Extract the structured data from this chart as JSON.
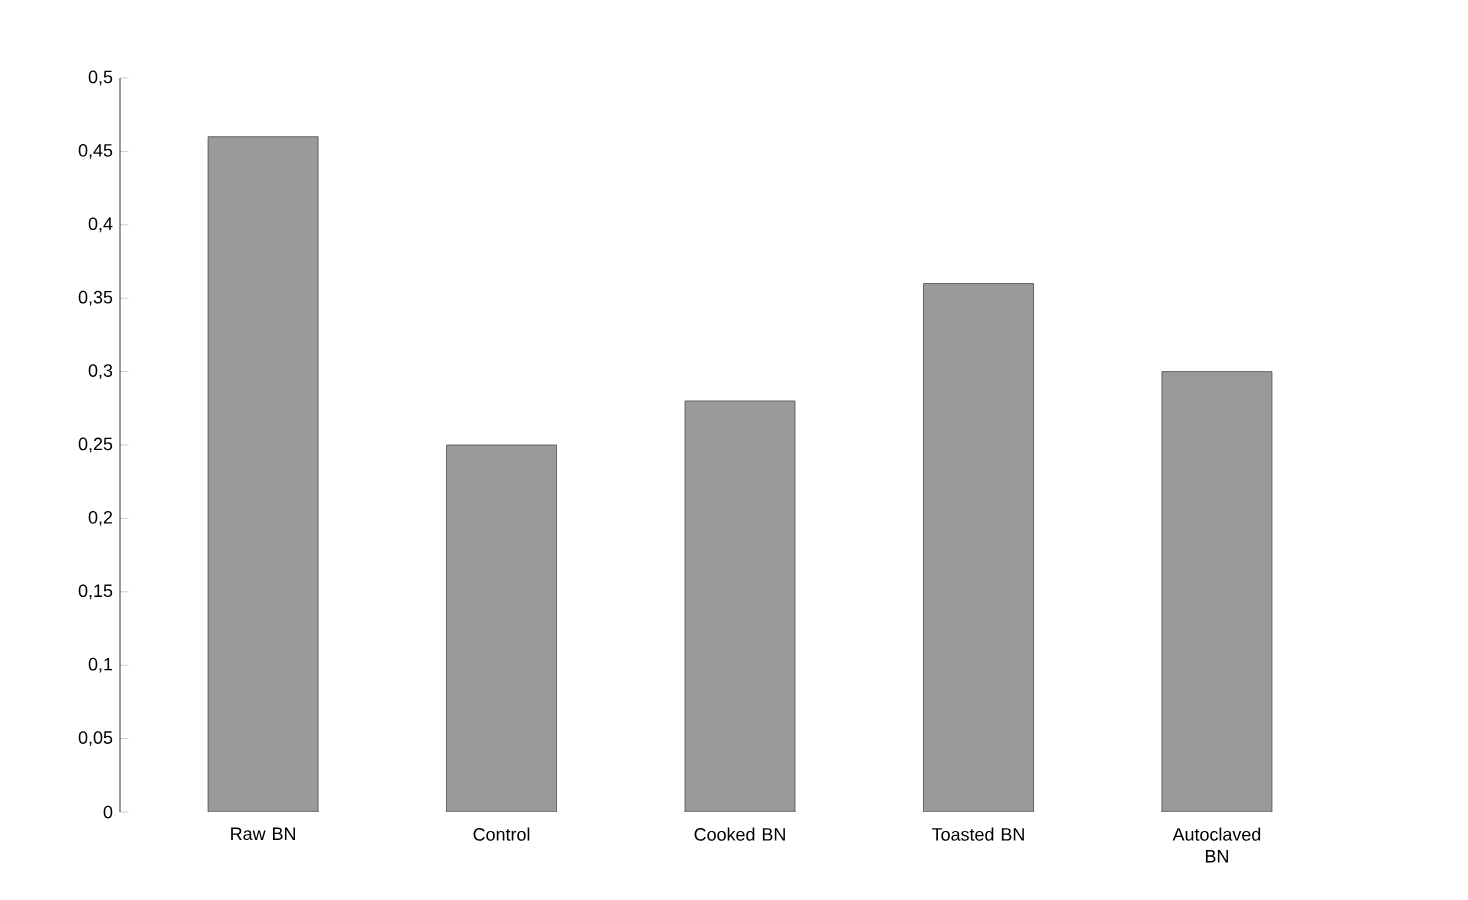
{
  "chart_data": {
    "type": "bar",
    "categories": [
      "Raw BN",
      "Control",
      "Cooked BN",
      "Toasted BN",
      "Autoclaved BN"
    ],
    "values": [
      0.46,
      0.25,
      0.28,
      0.36,
      0.3
    ],
    "color": "#9a9a9a",
    "ylim": [
      0,
      0.5
    ],
    "yticks": [
      0,
      {
        "value": 0.05,
        "label": "0,05"
      },
      {
        "value": 0.1,
        "label": "0,1"
      },
      {
        "value": 0.15,
        "label": "0,15"
      },
      {
        "value": 0.2,
        "label": "0,2"
      },
      {
        "value": 0.25,
        "label": "0,25"
      },
      {
        "value": 0.3,
        "label": "0,3"
      },
      {
        "value": 0.35,
        "label": "0,35"
      },
      {
        "value": 0.4,
        "label": "0,4"
      },
      {
        "value": 0.45,
        "label": "0,45"
      },
      {
        "value": 0.5,
        "label": "0,5"
      }
    ],
    "grid": false
  }
}
